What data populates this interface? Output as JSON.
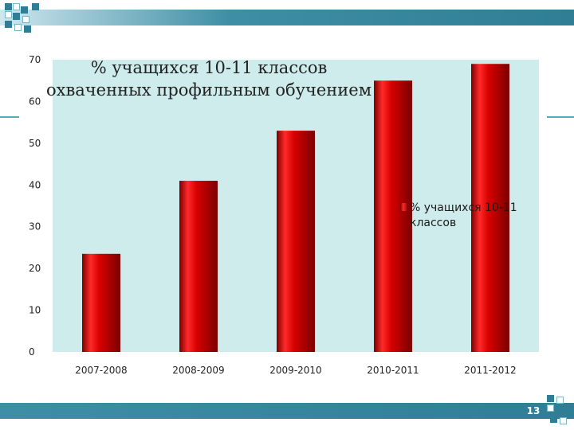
{
  "slide": {
    "page_number": "13"
  },
  "colors": {
    "plot_background": "#cfecec",
    "bar_base": "#c00000",
    "bar_dark": "#7a0000",
    "band_dark": "#2f7e96"
  },
  "chart_data": {
    "type": "bar",
    "title_lines": [
      "% учащихся 10-11 классов",
      "охваченных профильным обучением"
    ],
    "categories": [
      "2007-2008",
      "2008-2009",
      "2009-2010",
      "2010-2011",
      "2011-2012"
    ],
    "series": [
      {
        "name": "% учащихся 10-11 классов",
        "values": [
          23.5,
          41,
          53,
          65,
          69
        ]
      }
    ],
    "ylim": [
      0,
      70
    ],
    "yticks": [
      0,
      10,
      20,
      30,
      40,
      50,
      60,
      70
    ],
    "grid": false,
    "legend_position": "right",
    "legend_lines": [
      "% учащихся 10-11",
      "классов"
    ]
  }
}
